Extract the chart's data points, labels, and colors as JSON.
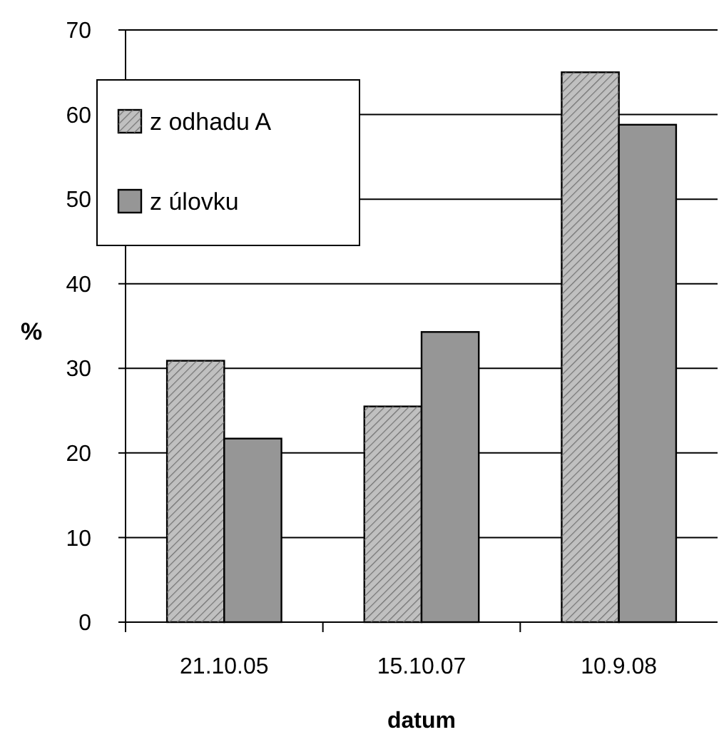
{
  "chart_data": {
    "type": "bar",
    "categories": [
      "21.10.05",
      "15.10.07",
      "10.9.08"
    ],
    "series": [
      {
        "name": "z odhadu A",
        "color": "#c0c0c0",
        "values": [
          30.9,
          25.5,
          65.0
        ]
      },
      {
        "name": "z úlovku",
        "color": "#969696",
        "values": [
          21.7,
          34.3,
          58.8
        ]
      }
    ],
    "xlabel": "datum",
    "ylabel": "%",
    "ylim": [
      0,
      70
    ],
    "yticks": [
      0,
      10,
      20,
      30,
      40,
      50,
      60,
      70
    ],
    "grid": "y",
    "legend": "top left"
  }
}
